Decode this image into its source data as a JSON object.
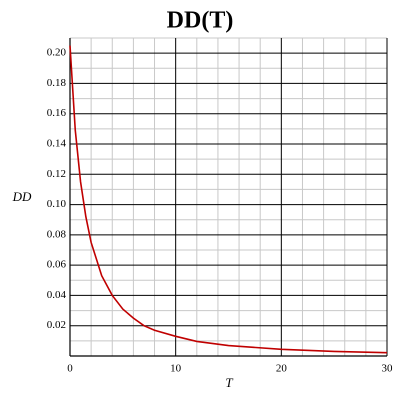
{
  "chart_data": {
    "type": "line",
    "title": "DD(T)",
    "x_label": "T",
    "y_label": "DD",
    "x": [
      0,
      0.5,
      1,
      1.5,
      2,
      3,
      4,
      5,
      6,
      7,
      8,
      10,
      12,
      15,
      20,
      25,
      30
    ],
    "series": [
      {
        "name": "DD",
        "color": "#c00000",
        "values": [
          0.205,
          0.149,
          0.115,
          0.092,
          0.075,
          0.053,
          0.04,
          0.031,
          0.025,
          0.02,
          0.017,
          0.013,
          0.0096,
          0.0069,
          0.0044,
          0.003,
          0.0022
        ]
      }
    ],
    "xlim": [
      0,
      30
    ],
    "xticks": [
      0,
      10,
      20,
      30
    ],
    "ylim": [
      0,
      0.21
    ],
    "yticks": [
      0.02,
      0.04,
      0.06,
      0.08,
      0.1,
      0.12,
      0.14,
      0.16,
      0.18,
      0.2
    ],
    "grid": true,
    "minor_grid": true
  }
}
